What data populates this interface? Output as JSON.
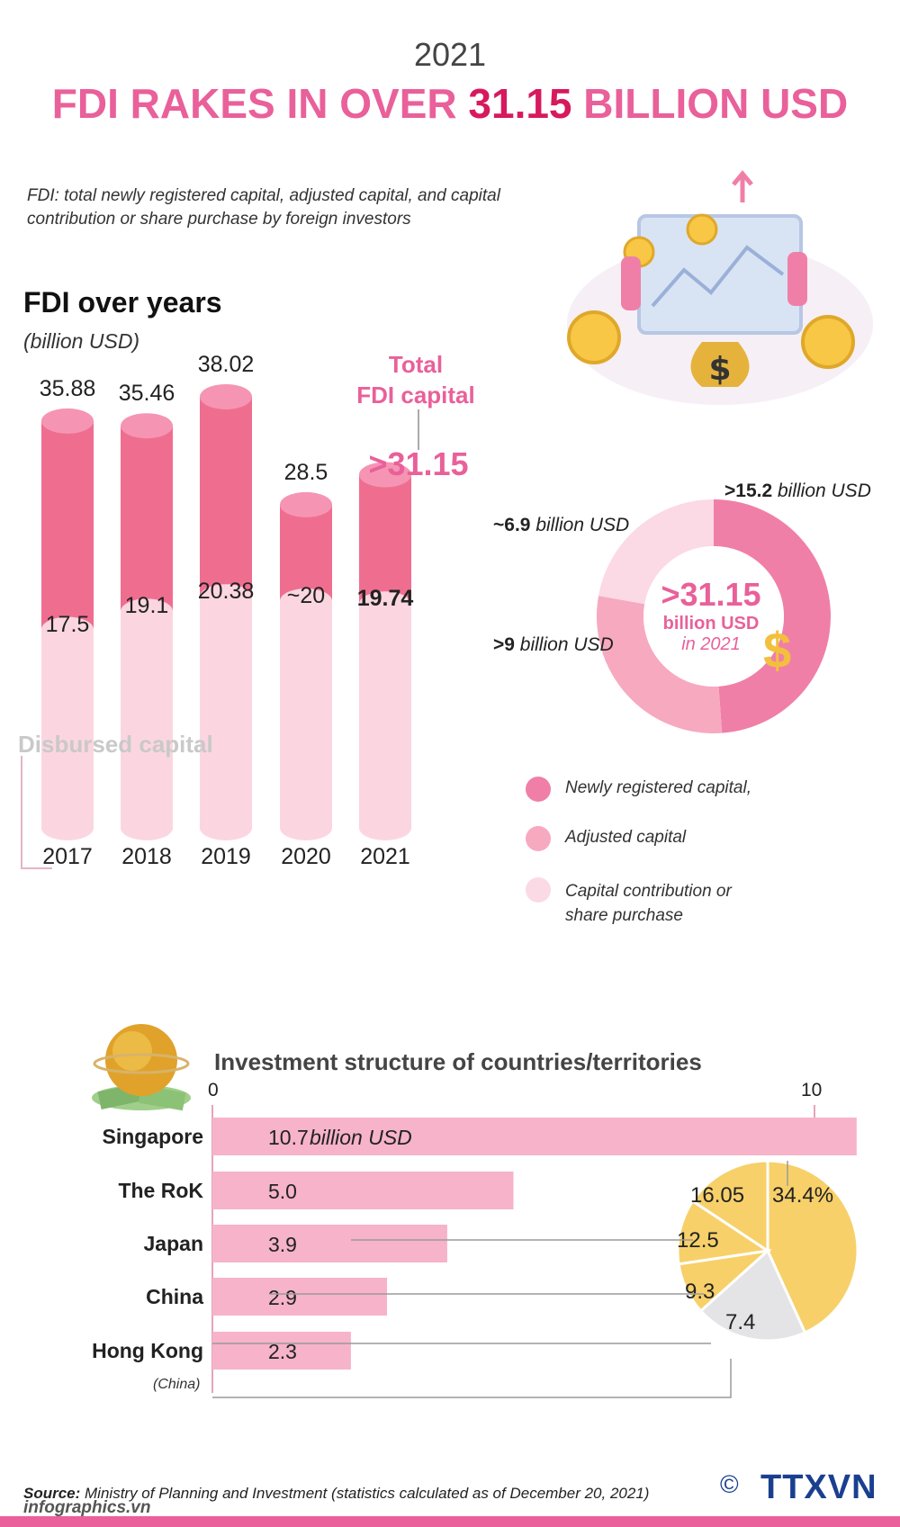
{
  "header": {
    "year": "2021",
    "title_part1": "FDI RAKES IN OVER ",
    "title_highlight": "31.15",
    "title_part2": " BILLION USD"
  },
  "definition": "FDI: total newly registered capital, adjusted capital, and capital contribution or share purchase by foreign investors",
  "colors": {
    "pink_dark": "#ef6e90",
    "pink_top": "#f595b3",
    "pink_light": "#fbd6e1",
    "headline": "#e9609a",
    "gold": "#f7d06a",
    "grey": "#e4e4e6"
  },
  "chart_data": [
    {
      "type": "bar",
      "title": "FDI over years",
      "subtitle": "(billion USD)",
      "categories": [
        "2017",
        "2018",
        "2019",
        "2020",
        "2021"
      ],
      "series": [
        {
          "name": "Total FDI capital",
          "values": [
            35.88,
            35.46,
            38.02,
            28.5,
            31.15
          ],
          "labels": [
            "35.88",
            "35.46",
            "38.02",
            "28.5",
            ">31.15"
          ]
        },
        {
          "name": "Disbursed capital",
          "values": [
            17.5,
            19.1,
            20.38,
            20,
            19.74
          ],
          "labels": [
            "17.5",
            "19.1",
            "20.38",
            "~20",
            "19.74"
          ]
        }
      ],
      "total_label_line1": "Total",
      "total_label_line2": "FDI capital"
    },
    {
      "type": "pie",
      "center_value": ">31.15",
      "center_unit": "billion USD",
      "center_sub": "in 2021",
      "slices": [
        {
          "name": "Newly registered capital,",
          "value": 15.2,
          "label_value": ">15.2",
          "label_unit": "billion USD",
          "color": "#f07fa8"
        },
        {
          "name": "Adjusted capital",
          "value": 9,
          "label_value": ">9",
          "label_unit": "billion USD",
          "color": "#f7a9c0"
        },
        {
          "name": "Capital contribution or share purchase",
          "value": 6.9,
          "label_value": "~6.9",
          "label_unit": "billion USD",
          "color": "#fbd9e5"
        }
      ],
      "legend": [
        {
          "label": "Newly registered capital,",
          "color": "#f07fa8"
        },
        {
          "label": "Adjusted capital",
          "color": "#f7a9c0"
        },
        {
          "label_line1": "Capital contribution or",
          "label_line2": "share purchase",
          "color": "#fbd9e5"
        }
      ]
    },
    {
      "type": "bar",
      "orientation": "horizontal",
      "title": "Investment structure of countries/territories",
      "axis_ticks": [
        "0",
        "10"
      ],
      "xlim": [
        0,
        10
      ],
      "categories": [
        "Singapore",
        "The RoK",
        "Japan",
        "China",
        "Hong Kong"
      ],
      "category_note": "(China)",
      "values": [
        10.7,
        5.0,
        3.9,
        2.9,
        2.3
      ],
      "value_labels": [
        "10.7",
        "5.0",
        "3.9",
        "2.9",
        "2.3"
      ],
      "first_unit": "billion USD"
    },
    {
      "type": "pie",
      "slices": [
        {
          "label": "34.4%",
          "value": 34.4,
          "color": "#f7d06a"
        },
        {
          "label": "16.05",
          "value": 16.05,
          "color": "#e4e4e6"
        },
        {
          "label": "12.5",
          "value": 12.5,
          "color": "#f7d06a"
        },
        {
          "label": "9.3",
          "value": 9.3,
          "color": "#f7d06a"
        },
        {
          "label": "7.4",
          "value": 7.4,
          "color": "#f7d06a"
        }
      ]
    }
  ],
  "disbursed_label": "Disbursed capital",
  "source_label": "Source:",
  "source_text": " Ministry of Planning and Investment (statistics calculated as of December 20, 2021)",
  "brand": "infographics.vn",
  "logo_text": "TTXVN",
  "logo_symbol": "©"
}
